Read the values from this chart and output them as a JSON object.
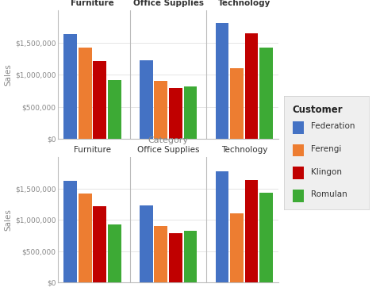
{
  "title": "Category",
  "categories": [
    "Furniture",
    "Office Supplies",
    "Technology"
  ],
  "customers": [
    "Federation",
    "Ferengi",
    "Klingon",
    "Romulan"
  ],
  "colors": [
    "#4472C4",
    "#ED7D31",
    "#C00000",
    "#3DAA35"
  ],
  "chart1": {
    "Furniture": [
      1630000,
      1420000,
      1210000,
      920000
    ],
    "Office Supplies": [
      1230000,
      900000,
      790000,
      820000
    ],
    "Technology": [
      1800000,
      1100000,
      1640000,
      1420000
    ]
  },
  "chart2": {
    "Furniture": [
      1620000,
      1420000,
      1210000,
      920000
    ],
    "Office Supplies": [
      1230000,
      900000,
      790000,
      820000
    ],
    "Technology": [
      1770000,
      1100000,
      1630000,
      1430000
    ]
  },
  "ylabel": "Sales",
  "ylim": [
    0,
    2000000
  ],
  "yticks": [
    0,
    500000,
    1000000,
    1500000
  ],
  "bg_color": "#FFFFFF",
  "plot_bg": "#FFFFFF",
  "legend_title": "Customer",
  "legend_bg": "#EFEFEF",
  "divider_color": "#BBBBBB",
  "grid_color": "#E0E0E0",
  "axis_color": "#BBBBBB",
  "tick_color": "#888888",
  "label_color": "#888888",
  "cat_label_bold1": true,
  "cat_label_bold2": false
}
